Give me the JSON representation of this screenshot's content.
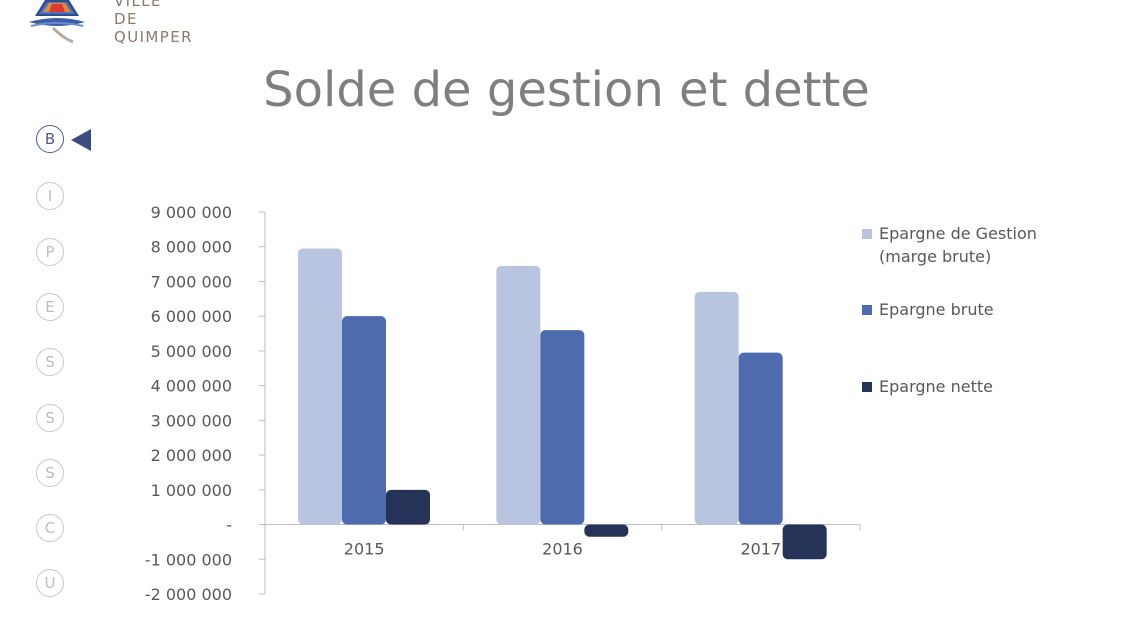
{
  "header": {
    "logo_line1": "VILLE",
    "logo_line2": "DE QUIMPER"
  },
  "title": "Solde de gestion et dette",
  "nav": {
    "items": [
      "B",
      "I",
      "P",
      "E",
      "S",
      "S",
      "S",
      "C",
      "U"
    ],
    "active_index": 0
  },
  "chart_data": {
    "type": "bar",
    "categories": [
      "2015",
      "2016",
      "2017"
    ],
    "series": [
      {
        "name": "Epargne de Gestion (marge brute)",
        "color": "#b9c5e0",
        "values": [
          7950000,
          7450000,
          6700000
        ]
      },
      {
        "name": "Epargne brute",
        "color": "#4f6bb0",
        "values": [
          6000000,
          5600000,
          4950000
        ]
      },
      {
        "name": "Epargne nette",
        "color": "#243357",
        "values": [
          1000000,
          -350000,
          -1000000
        ]
      }
    ],
    "ylim": [
      -2000000,
      9000000
    ],
    "yticks": [
      {
        "value": 9000000,
        "label": "9 000 000"
      },
      {
        "value": 8000000,
        "label": "8 000 000"
      },
      {
        "value": 7000000,
        "label": "7 000 000"
      },
      {
        "value": 6000000,
        "label": "6 000 000"
      },
      {
        "value": 5000000,
        "label": "5 000 000"
      },
      {
        "value": 4000000,
        "label": "4 000 000"
      },
      {
        "value": 3000000,
        "label": "3 000 000"
      },
      {
        "value": 2000000,
        "label": "2 000 000"
      },
      {
        "value": 1000000,
        "label": "1 000 000"
      },
      {
        "value": 0,
        "label": "-"
      },
      {
        "value": -1000000,
        "label": "-1 000 000"
      },
      {
        "value": -2000000,
        "label": "-2 000 000"
      }
    ],
    "legend_position": "right",
    "grid": false,
    "xlabel": "",
    "ylabel": ""
  }
}
